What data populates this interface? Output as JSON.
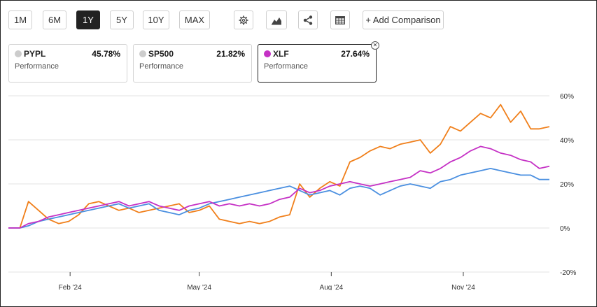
{
  "toolbar": {
    "ranges": [
      "1M",
      "6M",
      "1Y",
      "5Y",
      "10Y",
      "MAX"
    ],
    "active_range": "1Y",
    "add_comparison": "+ Add Comparison",
    "icons": [
      "gear-icon",
      "mountain-chart-icon",
      "share-icon",
      "table-icon"
    ]
  },
  "cards": [
    {
      "ticker": "PYPL",
      "value": "45.78%",
      "label": "Performance",
      "color": "#cccccc",
      "selected": false
    },
    {
      "ticker": "SP500",
      "value": "21.82%",
      "label": "Performance",
      "color": "#cccccc",
      "selected": false
    },
    {
      "ticker": "XLF",
      "value": "27.64%",
      "label": "Performance",
      "color": "#c531c5",
      "selected": true
    }
  ],
  "chart_data": {
    "type": "line",
    "title": "",
    "xlabel": "",
    "ylabel": "",
    "x_ticks": [
      "Feb '24",
      "May '24",
      "Aug '24",
      "Nov '24"
    ],
    "x_tick_dates": [
      "2024-02-01",
      "2024-05-01",
      "2024-08-01",
      "2024-11-01"
    ],
    "x_range": [
      "2023-12-20",
      "2024-12-31"
    ],
    "y_ticks": [
      "60%",
      "40%",
      "20%",
      "0%",
      "-20%"
    ],
    "y_tick_values": [
      60,
      40,
      20,
      0,
      -20
    ],
    "ylim": [
      -20,
      60
    ],
    "grid": "horizontal",
    "series": [
      {
        "name": "PYPL",
        "color": "#f07f1a",
        "x": [
          "2023-12-20",
          "2023-12-28",
          "2024-01-03",
          "2024-01-10",
          "2024-01-17",
          "2024-01-24",
          "2024-01-31",
          "2024-02-07",
          "2024-02-14",
          "2024-02-21",
          "2024-02-28",
          "2024-03-06",
          "2024-03-13",
          "2024-03-20",
          "2024-03-27",
          "2024-04-03",
          "2024-04-10",
          "2024-04-17",
          "2024-04-24",
          "2024-05-01",
          "2024-05-08",
          "2024-05-15",
          "2024-05-22",
          "2024-05-29",
          "2024-06-05",
          "2024-06-12",
          "2024-06-19",
          "2024-06-26",
          "2024-07-03",
          "2024-07-10",
          "2024-07-17",
          "2024-07-24",
          "2024-07-31",
          "2024-08-07",
          "2024-08-14",
          "2024-08-21",
          "2024-08-28",
          "2024-09-04",
          "2024-09-11",
          "2024-09-18",
          "2024-09-25",
          "2024-10-02",
          "2024-10-09",
          "2024-10-16",
          "2024-10-23",
          "2024-10-30",
          "2024-11-06",
          "2024-11-13",
          "2024-11-20",
          "2024-11-27",
          "2024-12-04",
          "2024-12-11",
          "2024-12-18",
          "2024-12-24",
          "2024-12-31"
        ],
        "values": [
          0,
          0,
          12,
          8,
          4,
          2,
          3,
          6,
          11,
          12,
          10,
          8,
          9,
          7,
          8,
          9,
          10,
          11,
          7,
          8,
          10,
          4,
          3,
          2,
          3,
          2,
          3,
          5,
          6,
          20,
          14,
          18,
          21,
          19,
          30,
          32,
          35,
          37,
          36,
          38,
          39,
          40,
          34,
          38,
          46,
          44,
          48,
          52,
          50,
          56,
          48,
          53,
          45,
          45,
          46
        ]
      },
      {
        "name": "SP500",
        "color": "#4a8fe0",
        "x": [
          "2023-12-20",
          "2023-12-28",
          "2024-01-03",
          "2024-01-10",
          "2024-01-17",
          "2024-01-24",
          "2024-01-31",
          "2024-02-07",
          "2024-02-14",
          "2024-02-21",
          "2024-02-28",
          "2024-03-06",
          "2024-03-13",
          "2024-03-20",
          "2024-03-27",
          "2024-04-03",
          "2024-04-10",
          "2024-04-17",
          "2024-04-24",
          "2024-05-01",
          "2024-05-08",
          "2024-05-15",
          "2024-05-22",
          "2024-05-29",
          "2024-06-05",
          "2024-06-12",
          "2024-06-19",
          "2024-06-26",
          "2024-07-03",
          "2024-07-10",
          "2024-07-17",
          "2024-07-24",
          "2024-07-31",
          "2024-08-07",
          "2024-08-14",
          "2024-08-21",
          "2024-08-28",
          "2024-09-04",
          "2024-09-11",
          "2024-09-18",
          "2024-09-25",
          "2024-10-02",
          "2024-10-09",
          "2024-10-16",
          "2024-10-23",
          "2024-10-30",
          "2024-11-06",
          "2024-11-13",
          "2024-11-20",
          "2024-11-27",
          "2024-12-04",
          "2024-12-11",
          "2024-12-18",
          "2024-12-24",
          "2024-12-31"
        ],
        "values": [
          0,
          0,
          1,
          3,
          4,
          5,
          6,
          7,
          8,
          9,
          10,
          11,
          9,
          10,
          11,
          8,
          7,
          6,
          8,
          9,
          11,
          12,
          13,
          14,
          15,
          16,
          17,
          18,
          19,
          17,
          15,
          16,
          17,
          15,
          18,
          19,
          18,
          15,
          17,
          19,
          20,
          19,
          18,
          21,
          22,
          24,
          25,
          26,
          27,
          26,
          25,
          24,
          24,
          22,
          22
        ]
      },
      {
        "name": "XLF",
        "color": "#c531c5",
        "x": [
          "2023-12-20",
          "2023-12-28",
          "2024-01-03",
          "2024-01-10",
          "2024-01-17",
          "2024-01-24",
          "2024-01-31",
          "2024-02-07",
          "2024-02-14",
          "2024-02-21",
          "2024-02-28",
          "2024-03-06",
          "2024-03-13",
          "2024-03-20",
          "2024-03-27",
          "2024-04-03",
          "2024-04-10",
          "2024-04-17",
          "2024-04-24",
          "2024-05-01",
          "2024-05-08",
          "2024-05-15",
          "2024-05-22",
          "2024-05-29",
          "2024-06-05",
          "2024-06-12",
          "2024-06-19",
          "2024-06-26",
          "2024-07-03",
          "2024-07-10",
          "2024-07-17",
          "2024-07-24",
          "2024-07-31",
          "2024-08-07",
          "2024-08-14",
          "2024-08-21",
          "2024-08-28",
          "2024-09-04",
          "2024-09-11",
          "2024-09-18",
          "2024-09-25",
          "2024-10-02",
          "2024-10-09",
          "2024-10-16",
          "2024-10-23",
          "2024-10-30",
          "2024-11-06",
          "2024-11-13",
          "2024-11-20",
          "2024-11-27",
          "2024-12-04",
          "2024-12-11",
          "2024-12-18",
          "2024-12-24",
          "2024-12-31"
        ],
        "values": [
          0,
          0,
          2,
          3,
          5,
          6,
          7,
          8,
          9,
          10,
          11,
          12,
          10,
          11,
          12,
          10,
          9,
          8,
          10,
          11,
          12,
          10,
          11,
          10,
          11,
          10,
          11,
          13,
          14,
          18,
          16,
          17,
          19,
          20,
          21,
          20,
          19,
          20,
          21,
          22,
          23,
          26,
          25,
          27,
          30,
          32,
          35,
          37,
          36,
          34,
          33,
          31,
          30,
          27,
          28
        ]
      }
    ]
  }
}
